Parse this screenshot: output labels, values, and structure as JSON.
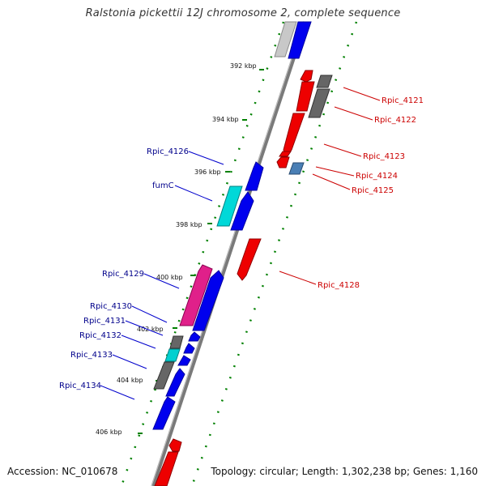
{
  "title": "Ralstonia pickettii 12J chromosome 2, complete sequence",
  "footer": {
    "accession": "Accession: NC_010678",
    "topology": "Topology: circular; Length: 1,302,238 bp; Genes: 1,160"
  },
  "colors": {
    "backbone": "#7a7a7a",
    "grid": "#008000",
    "forward_label": "#00008b",
    "reverse_label": "#cc0000",
    "gene_blue": "#0000ee",
    "gene_red": "#ee0000",
    "gene_gray": "#666666",
    "gene_cyan": "#00d0d0",
    "gene_pink": "#e0208a",
    "gene_steel": "#4a7fb5"
  },
  "scale_labels": [
    "392 kbp",
    "394 kbp",
    "396 kbp",
    "398 kbp",
    "400 kbp",
    "402 kbp",
    "404 kbp",
    "406 kbp"
  ],
  "forward_labels": [
    "Rpic_4126",
    "fumC",
    "Rpic_4129",
    "Rpic_4130",
    "Rpic_4131",
    "Rpic_4132",
    "Rpic_4133",
    "Rpic_4134"
  ],
  "reverse_labels": [
    "Rpic_4121",
    "Rpic_4122",
    "Rpic_4123",
    "Rpic_4124",
    "Rpic_4125",
    "Rpic_4128"
  ],
  "genes": [
    {
      "strand": "forward",
      "color": "gray",
      "start_kbp": 390.4,
      "end_kbp": 391.9
    },
    {
      "strand": "forward",
      "color": "blue",
      "start_kbp": 390.2,
      "end_kbp": 392.0
    },
    {
      "strand": "reverse",
      "color": "red",
      "start_kbp": 392.6,
      "end_kbp": 393.9
    },
    {
      "strand": "reverse",
      "color": "gray",
      "start_kbp": 392.9,
      "end_kbp": 393.2
    },
    {
      "strand": "reverse",
      "color": "gray",
      "start_kbp": 393.2,
      "end_kbp": 394.1
    },
    {
      "strand": "reverse",
      "color": "red",
      "start_kbp": 394.3,
      "end_kbp": 395.3
    },
    {
      "strand": "reverse",
      "color": "red",
      "start_kbp": 395.4,
      "end_kbp": 395.7
    },
    {
      "strand": "reverse",
      "color": "red",
      "start_kbp": 395.8,
      "end_kbp": 396.1
    },
    {
      "strand": "reverse",
      "color": "steel",
      "start_kbp": 395.9,
      "end_kbp": 396.2
    },
    {
      "strand": "forward",
      "color": "blue",
      "start_kbp": 395.7,
      "end_kbp": 396.6
    },
    {
      "strand": "forward",
      "color": "cyan",
      "start_kbp": 396.5,
      "end_kbp": 397.7
    },
    {
      "strand": "forward",
      "color": "blue",
      "start_kbp": 396.5,
      "end_kbp": 397.8
    },
    {
      "strand": "reverse",
      "color": "red",
      "start_kbp": 398.4,
      "end_kbp": 399.6
    },
    {
      "strand": "forward",
      "color": "pink",
      "start_kbp": 399.2,
      "end_kbp": 401.5
    },
    {
      "strand": "forward",
      "color": "blue",
      "start_kbp": 399.6,
      "end_kbp": 401.8
    },
    {
      "strand": "forward",
      "color": "blue",
      "start_kbp": 401.9,
      "end_kbp": 402.2
    },
    {
      "strand": "forward",
      "color": "gray",
      "start_kbp": 402.1,
      "end_kbp": 402.5
    },
    {
      "strand": "forward",
      "color": "blue",
      "start_kbp": 402.3,
      "end_kbp": 402.6
    },
    {
      "strand": "forward",
      "color": "cyan",
      "start_kbp": 402.5,
      "end_kbp": 402.9
    },
    {
      "strand": "forward",
      "color": "blue",
      "start_kbp": 402.7,
      "end_kbp": 403.0
    },
    {
      "strand": "forward",
      "color": "gray",
      "start_kbp": 403.1,
      "end_kbp": 404.0
    },
    {
      "strand": "forward",
      "color": "blue",
      "start_kbp": 403.3,
      "end_kbp": 404.1
    },
    {
      "strand": "forward",
      "color": "blue",
      "start_kbp": 404.6,
      "end_kbp": 405.5
    },
    {
      "strand": "reverse",
      "color": "red",
      "start_kbp": 406.3,
      "end_kbp": 406.6
    },
    {
      "strand": "reverse",
      "color": "red",
      "start_kbp": 406.6,
      "end_kbp": 407.2
    }
  ]
}
